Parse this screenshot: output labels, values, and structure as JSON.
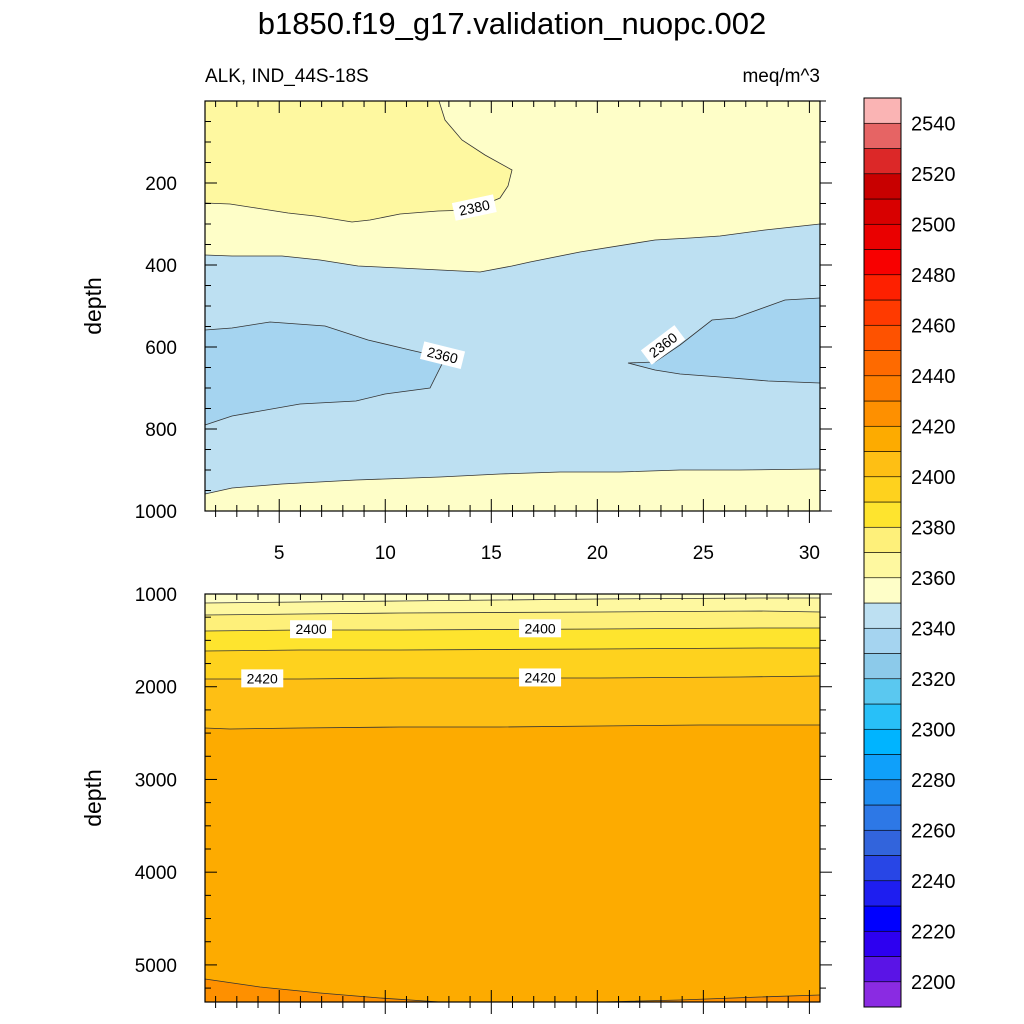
{
  "figure_title": "b1850.f19_g17.validation_nuopc.002",
  "colors": {
    "band_2340_2360": "#a5d4f0",
    "band_2360_2370": "#bde0f2",
    "band_2370_2380": "#fefec8",
    "band_2380_2390": "#fef8a0",
    "band_2390_2400": "#fef07a",
    "band_2400_2410": "#fee42e",
    "band_2410_2420": "#fed21e",
    "band_2420_2430": "#febf14",
    "band_2430_2440": "#fdab00",
    "band_2440_2450": "#fe9000"
  },
  "chart_data": [
    {
      "type": "contour",
      "panel": "upper",
      "left_label": "ALK, IND_44S-18S",
      "right_label": "meq/m^3",
      "ylabel": "depth",
      "xlabel": "",
      "xlim": [
        1.5,
        30.5
      ],
      "ylim": [
        1000,
        0
      ],
      "xticks": [
        5,
        10,
        15,
        20,
        25,
        30
      ],
      "yticks": [
        200,
        400,
        600,
        800,
        1000
      ],
      "contour_labels": [
        {
          "text": "2380",
          "x": 14.2,
          "y": 260,
          "angle": -12
        },
        {
          "text": "2360",
          "x": 12.7,
          "y": 620,
          "angle": 14
        },
        {
          "text": "2360",
          "x": 23.1,
          "y": 595,
          "angle": -37
        }
      ]
    },
    {
      "type": "contour",
      "panel": "lower",
      "left_label": "",
      "right_label": "",
      "ylabel": "depth",
      "xlabel": "",
      "xlim": [
        1.5,
        30.5
      ],
      "ylim": [
        5400,
        1000
      ],
      "xticks": [
        5,
        10,
        15,
        20,
        25,
        30
      ],
      "yticks": [
        1000,
        2000,
        3000,
        4000,
        5000
      ],
      "contour_labels": [
        {
          "text": "2400",
          "x": 6.5,
          "y": 1380
        },
        {
          "text": "2400",
          "x": 17.3,
          "y": 1370
        },
        {
          "text": "2420",
          "x": 4.2,
          "y": 1910
        },
        {
          "text": "2420",
          "x": 17.3,
          "y": 1900
        }
      ]
    },
    {
      "type": "colorbar",
      "levels": [
        2190,
        2200,
        2210,
        2220,
        2230,
        2240,
        2250,
        2260,
        2270,
        2280,
        2290,
        2300,
        2310,
        2320,
        2330,
        2340,
        2350,
        2360,
        2370,
        2380,
        2390,
        2400,
        2410,
        2420,
        2430,
        2440,
        2450,
        2460,
        2470,
        2480,
        2490,
        2500,
        2510,
        2520,
        2530,
        2540,
        2550
      ],
      "tick_labels": [
        "2200",
        "2220",
        "2240",
        "2260",
        "2280",
        "2300",
        "2320",
        "2340",
        "2360",
        "2380",
        "2400",
        "2420",
        "2440",
        "2460",
        "2480",
        "2500",
        "2520",
        "2540"
      ],
      "colors": [
        "#8a2be2",
        "#5a14e6",
        "#2d00f0",
        "#0000ff",
        "#1e1ef0",
        "#2846e6",
        "#3264dc",
        "#2d78e6",
        "#1e8cf0",
        "#0fa0fa",
        "#00b4ff",
        "#28c0f8",
        "#5ac8f0",
        "#8ccaea",
        "#a5d4f0",
        "#bde0f2",
        "#fefec8",
        "#fef8a0",
        "#fef07a",
        "#fee42e",
        "#fed21e",
        "#febf14",
        "#fdab00",
        "#fe9000",
        "#fe7d00",
        "#fe6a00",
        "#fe5200",
        "#ff3a00",
        "#fe2000",
        "#f80000",
        "#ea0000",
        "#d80000",
        "#c80000",
        "#dc2828",
        "#e66464",
        "#fab4b4"
      ]
    }
  ]
}
